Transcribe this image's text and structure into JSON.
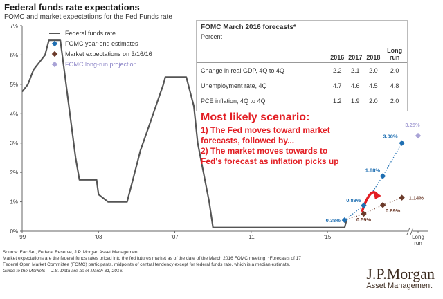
{
  "title": "Federal funds rate expectations",
  "subtitle": "FOMC and market expectations for the Fed Funds rate",
  "legend": [
    {
      "label": "Federal funds rate",
      "color": "#555555",
      "shape": "line"
    },
    {
      "label": "FOMC year-end estimates",
      "color": "#1f6fb2",
      "shape": "diamond"
    },
    {
      "label": "Market expectations on 3/16/16",
      "color": "#6b3a2a",
      "shape": "diamond"
    },
    {
      "label": "FOMC long-run projection",
      "color": "#a9a3d6",
      "shape": "diamond"
    }
  ],
  "forecast_table": {
    "title": "FOMC March 2016 forecasts*",
    "unit": "Percent",
    "columns": [
      "2016",
      "2017",
      "2018",
      "Long run"
    ],
    "rows": [
      {
        "label": "Change in real GDP, 4Q to 4Q",
        "values": [
          "2.2",
          "2.1",
          "2.0",
          "2.0"
        ]
      },
      {
        "label": "Unemployment rate, 4Q",
        "values": [
          "4.7",
          "4.6",
          "4.5",
          "4.8"
        ]
      },
      {
        "label": "PCE inflation, 4Q to 4Q",
        "values": [
          "1.2",
          "1.9",
          "2.0",
          "2.0"
        ]
      }
    ]
  },
  "annotation": {
    "heading": "Most likely scenario:",
    "lines": [
      "1) The Fed moves toward market",
      "forecasts, followed by...",
      "2) The market moves towards to",
      "Fed's forecast as inflation picks up"
    ]
  },
  "footnote": {
    "lines": [
      "Source: FactSet, Federal Reserve, J.P. Morgan Asset Management.",
      "Market expectations are the federal funds rates priced into the fed futures market as of the date of the March 2016 FOMC meeting. *Forecasts of 17",
      "Federal Open Market Committee (FOMC) participants, midpoints of central tendency except for federal funds rate, which is a median estimate."
    ],
    "guide": "Guide to the Markets – U.S. Data are as of March 31, 2016."
  },
  "brand": {
    "name": "J.P.Morgan",
    "sub": "Asset Management"
  },
  "colors": {
    "rate": "#555555",
    "fomc": "#1f6fb2",
    "market": "#6b3a2a",
    "longrun": "#a9a3d6",
    "accent": "#e31e24"
  },
  "chart_data": {
    "type": "line",
    "xlim": [
      1999,
      2019.5
    ],
    "ylim": [
      0,
      7
    ],
    "x_ticks": [
      {
        "x": 1999,
        "label": "'99"
      },
      {
        "x": 2003,
        "label": "'03"
      },
      {
        "x": 2007,
        "label": "'07"
      },
      {
        "x": 2011,
        "label": "'11"
      },
      {
        "x": 2015,
        "label": "'15"
      },
      {
        "x": 2019.5,
        "label": "Long run"
      }
    ],
    "y_ticks": [
      {
        "v": 0,
        "label": "0%"
      },
      {
        "v": 1,
        "label": "1%"
      },
      {
        "v": 2,
        "label": "2%"
      },
      {
        "v": 3,
        "label": "3%"
      },
      {
        "v": 4,
        "label": "4%"
      },
      {
        "v": 5,
        "label": "5%"
      },
      {
        "v": 6,
        "label": "6%"
      },
      {
        "v": 7,
        "label": "7%"
      }
    ],
    "series": [
      {
        "name": "Federal funds rate",
        "kind": "line",
        "points": [
          [
            1999.0,
            4.75
          ],
          [
            1999.3,
            5.0
          ],
          [
            1999.6,
            5.5
          ],
          [
            1999.9,
            5.75
          ],
          [
            2000.2,
            6.0
          ],
          [
            2000.4,
            6.5
          ],
          [
            2001.0,
            6.5
          ],
          [
            2001.2,
            5.5
          ],
          [
            2001.4,
            4.5
          ],
          [
            2001.6,
            3.5
          ],
          [
            2001.8,
            2.5
          ],
          [
            2002.0,
            1.75
          ],
          [
            2002.9,
            1.75
          ],
          [
            2003.0,
            1.25
          ],
          [
            2003.5,
            1.0
          ],
          [
            2004.5,
            1.0
          ],
          [
            2004.8,
            1.75
          ],
          [
            2005.2,
            2.75
          ],
          [
            2005.6,
            3.5
          ],
          [
            2006.0,
            4.25
          ],
          [
            2006.4,
            5.0
          ],
          [
            2006.5,
            5.25
          ],
          [
            2007.6,
            5.25
          ],
          [
            2007.8,
            4.75
          ],
          [
            2008.0,
            4.25
          ],
          [
            2008.2,
            3.0
          ],
          [
            2008.5,
            2.0
          ],
          [
            2008.8,
            1.0
          ],
          [
            2009.0,
            0.125
          ],
          [
            2015.9,
            0.125
          ],
          [
            2016.0,
            0.375
          ]
        ]
      },
      {
        "name": "FOMC year-end estimates",
        "kind": "dotted-points",
        "points": [
          {
            "x": 2015.9,
            "y": 0.375,
            "label": "0.38%"
          },
          {
            "x": 2016.9,
            "y": 0.875,
            "label": "0.88%"
          },
          {
            "x": 2017.9,
            "y": 1.875,
            "label": "1.88%"
          },
          {
            "x": 2018.9,
            "y": 3.0,
            "label": "3.00%"
          }
        ]
      },
      {
        "name": "Market expectations on 3/16/16",
        "kind": "dotted-points",
        "points": [
          {
            "x": 2016.9,
            "y": 0.59,
            "label": "0.59%"
          },
          {
            "x": 2017.9,
            "y": 0.89,
            "label": "0.89%"
          },
          {
            "x": 2018.9,
            "y": 1.14,
            "label": "1.14%"
          }
        ]
      },
      {
        "name": "FOMC long-run projection",
        "kind": "points",
        "points": [
          {
            "x": 2019.5,
            "y": 3.25,
            "label": "3.25%"
          }
        ]
      }
    ]
  }
}
